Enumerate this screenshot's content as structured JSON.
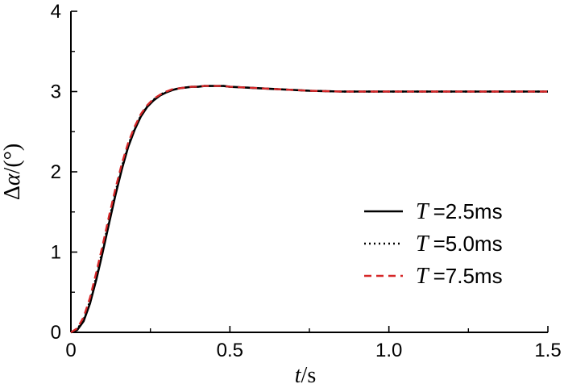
{
  "chart_data": {
    "type": "line",
    "xlabel": {
      "var": "t",
      "unit": "/s"
    },
    "ylabel": {
      "prefix": "Δ",
      "var": "α",
      "unit": "/(°)"
    },
    "xlim": [
      0,
      1.5
    ],
    "ylim": [
      0,
      4
    ],
    "x_ticks": [
      0,
      0.5,
      1.0,
      1.5
    ],
    "x_tick_labels": [
      "0",
      "0.5",
      "1.0",
      "1.5"
    ],
    "y_ticks": [
      0,
      1,
      2,
      3,
      4
    ],
    "y_tick_labels": [
      "0",
      "1",
      "2",
      "3",
      "4"
    ],
    "grid": false,
    "legend_position": "right",
    "series": [
      {
        "name": "T =2.5ms",
        "legend_var": "T",
        "legend_value": "=2.5ms",
        "style": "solid",
        "color": "#000000",
        "x": [
          0,
          0.02,
          0.04,
          0.06,
          0.08,
          0.1,
          0.12,
          0.14,
          0.16,
          0.18,
          0.2,
          0.22,
          0.24,
          0.26,
          0.28,
          0.3,
          0.32,
          0.34,
          0.36,
          0.38,
          0.4,
          0.42,
          0.45,
          0.48,
          0.5,
          0.55,
          0.6,
          0.65,
          0.7,
          0.75,
          0.8,
          0.85,
          0.9,
          1.0,
          1.1,
          1.2,
          1.3,
          1.4,
          1.5
        ],
        "y": [
          0,
          0.03,
          0.14,
          0.36,
          0.66,
          1.0,
          1.36,
          1.71,
          2.03,
          2.31,
          2.52,
          2.69,
          2.81,
          2.89,
          2.95,
          2.99,
          3.02,
          3.04,
          3.05,
          3.06,
          3.06,
          3.07,
          3.07,
          3.07,
          3.06,
          3.05,
          3.04,
          3.03,
          3.02,
          3.01,
          3.005,
          3.0,
          3.0,
          3.0,
          3.0,
          3.0,
          3.0,
          3.0,
          3.0
        ]
      },
      {
        "name": "T =5.0ms",
        "legend_var": "T",
        "legend_value": "=5.0ms",
        "style": "dotted",
        "color": "#000000",
        "x": [
          0,
          0.02,
          0.04,
          0.06,
          0.08,
          0.1,
          0.12,
          0.14,
          0.16,
          0.18,
          0.2,
          0.22,
          0.24,
          0.26,
          0.28,
          0.3,
          0.32,
          0.34,
          0.36,
          0.38,
          0.4,
          0.42,
          0.45,
          0.48,
          0.5,
          0.55,
          0.6,
          0.65,
          0.7,
          0.75,
          0.8,
          0.85,
          0.9,
          1.0,
          1.1,
          1.2,
          1.3,
          1.4,
          1.5
        ],
        "y": [
          0,
          0.04,
          0.16,
          0.39,
          0.7,
          1.04,
          1.4,
          1.75,
          2.06,
          2.33,
          2.54,
          2.7,
          2.82,
          2.9,
          2.96,
          3.0,
          3.02,
          3.04,
          3.05,
          3.06,
          3.06,
          3.07,
          3.07,
          3.07,
          3.06,
          3.05,
          3.04,
          3.03,
          3.02,
          3.01,
          3.005,
          3.0,
          3.0,
          3.0,
          3.0,
          3.0,
          3.0,
          3.0,
          3.0
        ]
      },
      {
        "name": "T =7.5ms",
        "legend_var": "T",
        "legend_value": "=7.5ms",
        "style": "dashed",
        "color": "#d62728",
        "x": [
          0,
          0.02,
          0.04,
          0.06,
          0.08,
          0.1,
          0.12,
          0.14,
          0.16,
          0.18,
          0.2,
          0.22,
          0.24,
          0.26,
          0.28,
          0.3,
          0.32,
          0.34,
          0.36,
          0.38,
          0.4,
          0.42,
          0.45,
          0.48,
          0.5,
          0.55,
          0.6,
          0.65,
          0.7,
          0.75,
          0.8,
          0.85,
          0.9,
          1.0,
          1.1,
          1.2,
          1.3,
          1.4,
          1.5
        ],
        "y": [
          0,
          0.05,
          0.19,
          0.43,
          0.75,
          1.09,
          1.45,
          1.79,
          2.1,
          2.36,
          2.56,
          2.72,
          2.83,
          2.91,
          2.96,
          3.0,
          3.03,
          3.04,
          3.05,
          3.06,
          3.06,
          3.07,
          3.07,
          3.07,
          3.06,
          3.05,
          3.04,
          3.03,
          3.02,
          3.01,
          3.005,
          3.0,
          3.0,
          3.0,
          3.0,
          3.0,
          3.0,
          3.0,
          3.0
        ]
      }
    ]
  }
}
